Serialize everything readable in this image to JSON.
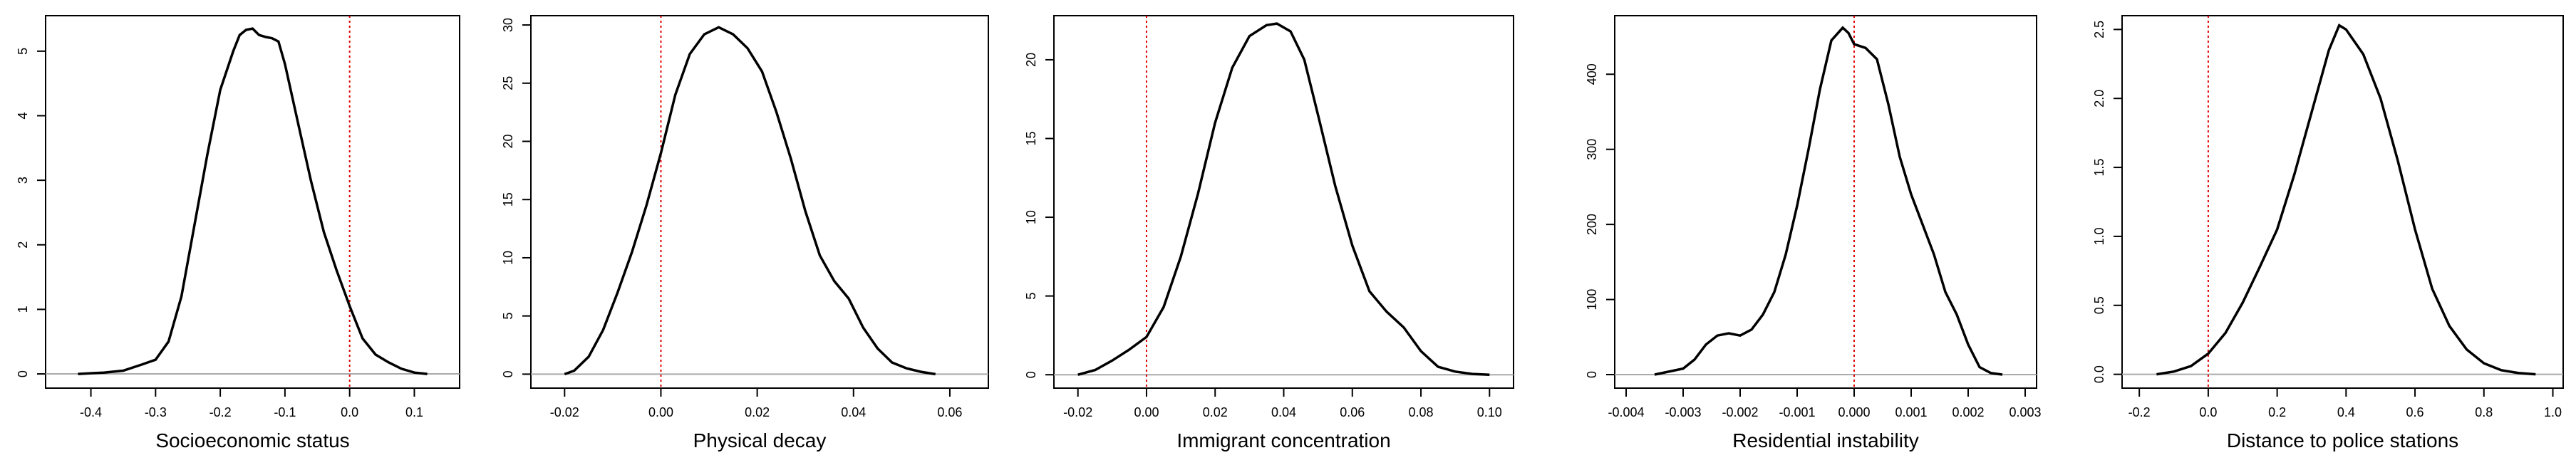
{
  "colors": {
    "density": "#000000",
    "reference_line": "#e00000",
    "baseline": "#aaaaaa"
  },
  "chart_data": [
    {
      "type": "line",
      "xlabel": "Socioeconomic status",
      "ylabel": "",
      "xlim": [
        -0.47,
        0.17
      ],
      "ylim": [
        -0.22,
        5.55
      ],
      "xticks": [
        -0.4,
        -0.3,
        -0.2,
        -0.1,
        0.0,
        0.1
      ],
      "xtick_labels": [
        "-0.4",
        "-0.3",
        "-0.2",
        "-0.1",
        "0.0",
        "0.1"
      ],
      "yticks": [
        0,
        1,
        2,
        3,
        4,
        5
      ],
      "ytick_labels": [
        "0",
        "1",
        "2",
        "3",
        "4",
        "5"
      ],
      "reference_x": 0.0,
      "x": [
        -0.42,
        -0.38,
        -0.35,
        -0.32,
        -0.3,
        -0.28,
        -0.26,
        -0.24,
        -0.22,
        -0.2,
        -0.18,
        -0.17,
        -0.16,
        -0.15,
        -0.14,
        -0.13,
        -0.12,
        -0.11,
        -0.1,
        -0.08,
        -0.06,
        -0.04,
        -0.02,
        0.0,
        0.02,
        0.04,
        0.06,
        0.08,
        0.1,
        0.12
      ],
      "y": [
        0.0,
        0.02,
        0.05,
        0.15,
        0.22,
        0.5,
        1.2,
        2.3,
        3.4,
        4.4,
        5.0,
        5.25,
        5.33,
        5.35,
        5.25,
        5.22,
        5.2,
        5.15,
        4.8,
        3.9,
        3.0,
        2.2,
        1.6,
        1.05,
        0.55,
        0.3,
        0.18,
        0.08,
        0.02,
        0.0
      ]
    },
    {
      "type": "line",
      "xlabel": "Physical decay",
      "ylabel": "",
      "xlim": [
        -0.027,
        0.068
      ],
      "ylim": [
        -1.2,
        30.8
      ],
      "xticks": [
        -0.02,
        0.0,
        0.02,
        0.04,
        0.06
      ],
      "xtick_labels": [
        "-0.02",
        "0.00",
        "0.02",
        "0.04",
        "0.06"
      ],
      "yticks": [
        0,
        5,
        10,
        15,
        20,
        25,
        30
      ],
      "ytick_labels": [
        "0",
        "5",
        "10",
        "15",
        "20",
        "25",
        "30"
      ],
      "reference_x": 0.0,
      "x": [
        -0.02,
        -0.018,
        -0.015,
        -0.012,
        -0.009,
        -0.006,
        -0.003,
        0.0,
        0.003,
        0.006,
        0.009,
        0.012,
        0.015,
        0.018,
        0.021,
        0.024,
        0.027,
        0.03,
        0.033,
        0.036,
        0.039,
        0.042,
        0.045,
        0.048,
        0.051,
        0.054,
        0.057
      ],
      "y": [
        0.0,
        0.3,
        1.5,
        3.8,
        7.0,
        10.5,
        14.5,
        19.0,
        24.0,
        27.5,
        29.2,
        29.8,
        29.2,
        28.0,
        26.0,
        22.5,
        18.5,
        14.0,
        10.2,
        8.0,
        6.5,
        4.0,
        2.2,
        1.0,
        0.5,
        0.2,
        0.0
      ]
    },
    {
      "type": "line",
      "xlabel": "Immigrant concentration",
      "ylabel": "",
      "xlim": [
        -0.027,
        0.107
      ],
      "ylim": [
        -0.85,
        22.8
      ],
      "xticks": [
        -0.02,
        0.0,
        0.02,
        0.04,
        0.06,
        0.08,
        0.1
      ],
      "xtick_labels": [
        "-0.02",
        "0.00",
        "0.02",
        "0.04",
        "0.06",
        "0.08",
        "0.10"
      ],
      "yticks": [
        0,
        5,
        10,
        15,
        20
      ],
      "ytick_labels": [
        "0",
        "5",
        "10",
        "15",
        "20"
      ],
      "reference_x": 0.0,
      "x": [
        -0.02,
        -0.015,
        -0.01,
        -0.005,
        0.0,
        0.005,
        0.01,
        0.015,
        0.02,
        0.025,
        0.03,
        0.035,
        0.038,
        0.042,
        0.046,
        0.05,
        0.055,
        0.06,
        0.065,
        0.07,
        0.075,
        0.08,
        0.085,
        0.09,
        0.095,
        0.1
      ],
      "y": [
        0.0,
        0.3,
        0.9,
        1.6,
        2.4,
        4.3,
        7.5,
        11.5,
        16.0,
        19.5,
        21.5,
        22.2,
        22.3,
        21.8,
        20.0,
        16.5,
        12.0,
        8.2,
        5.3,
        4.0,
        3.0,
        1.5,
        0.5,
        0.2,
        0.05,
        0.0
      ]
    },
    {
      "type": "line",
      "xlabel": "Residential instability",
      "ylabel": "",
      "xlim": [
        -0.0042,
        0.0032
      ],
      "ylim": [
        -18,
        478
      ],
      "xticks": [
        -0.004,
        -0.003,
        -0.002,
        -0.001,
        0.0,
        0.001,
        0.002,
        0.003
      ],
      "xtick_labels": [
        "-0.004",
        "-0.003",
        "-0.002",
        "-0.001",
        "0.000",
        "0.001",
        "0.002",
        "0.003"
      ],
      "yticks": [
        0,
        100,
        200,
        300,
        400
      ],
      "ytick_labels": [
        "0",
        "100",
        "200",
        "300",
        "400"
      ],
      "reference_x": 0.0,
      "x": [
        -0.0035,
        -0.003,
        -0.0028,
        -0.0026,
        -0.0024,
        -0.0022,
        -0.002,
        -0.0018,
        -0.0016,
        -0.0014,
        -0.0012,
        -0.001,
        -0.0008,
        -0.0006,
        -0.0004,
        -0.0002,
        -0.0001,
        0.0,
        0.0002,
        0.0004,
        0.0006,
        0.0008,
        0.001,
        0.0012,
        0.0014,
        0.0016,
        0.0018,
        0.002,
        0.0022,
        0.0024,
        0.0026
      ],
      "y": [
        0.0,
        8.0,
        20.0,
        40.0,
        52.0,
        55.0,
        52.0,
        60.0,
        80.0,
        110.0,
        160.0,
        225.0,
        300.0,
        380.0,
        445.0,
        462.0,
        455.0,
        440.0,
        435.0,
        420.0,
        360.0,
        290.0,
        240.0,
        200.0,
        160.0,
        110.0,
        80.0,
        40.0,
        10.0,
        2.0,
        0.0
      ]
    },
    {
      "type": "line",
      "xlabel": "Distance to police stations",
      "ylabel": "",
      "xlim": [
        -0.25,
        1.03
      ],
      "ylim": [
        -0.1,
        2.6
      ],
      "xticks": [
        -0.2,
        0.0,
        0.2,
        0.4,
        0.6,
        0.8,
        1.0
      ],
      "xtick_labels": [
        "-0.2",
        "0.0",
        "0.2",
        "0.4",
        "0.6",
        "0.8",
        "1.0"
      ],
      "yticks": [
        0,
        0.5,
        1.0,
        1.5,
        2.0,
        2.5
      ],
      "ytick_labels": [
        "0.0",
        "0.5",
        "1.0",
        "1.5",
        "2.0",
        "2.5"
      ],
      "reference_x": 0.0,
      "x": [
        -0.15,
        -0.1,
        -0.05,
        0.0,
        0.05,
        0.1,
        0.15,
        0.2,
        0.25,
        0.3,
        0.35,
        0.38,
        0.4,
        0.45,
        0.5,
        0.55,
        0.6,
        0.65,
        0.7,
        0.75,
        0.8,
        0.85,
        0.9,
        0.95
      ],
      "y": [
        0.0,
        0.02,
        0.06,
        0.15,
        0.3,
        0.52,
        0.78,
        1.05,
        1.45,
        1.9,
        2.35,
        2.53,
        2.5,
        2.32,
        2.0,
        1.55,
        1.05,
        0.62,
        0.35,
        0.18,
        0.08,
        0.03,
        0.01,
        0.0
      ]
    }
  ]
}
